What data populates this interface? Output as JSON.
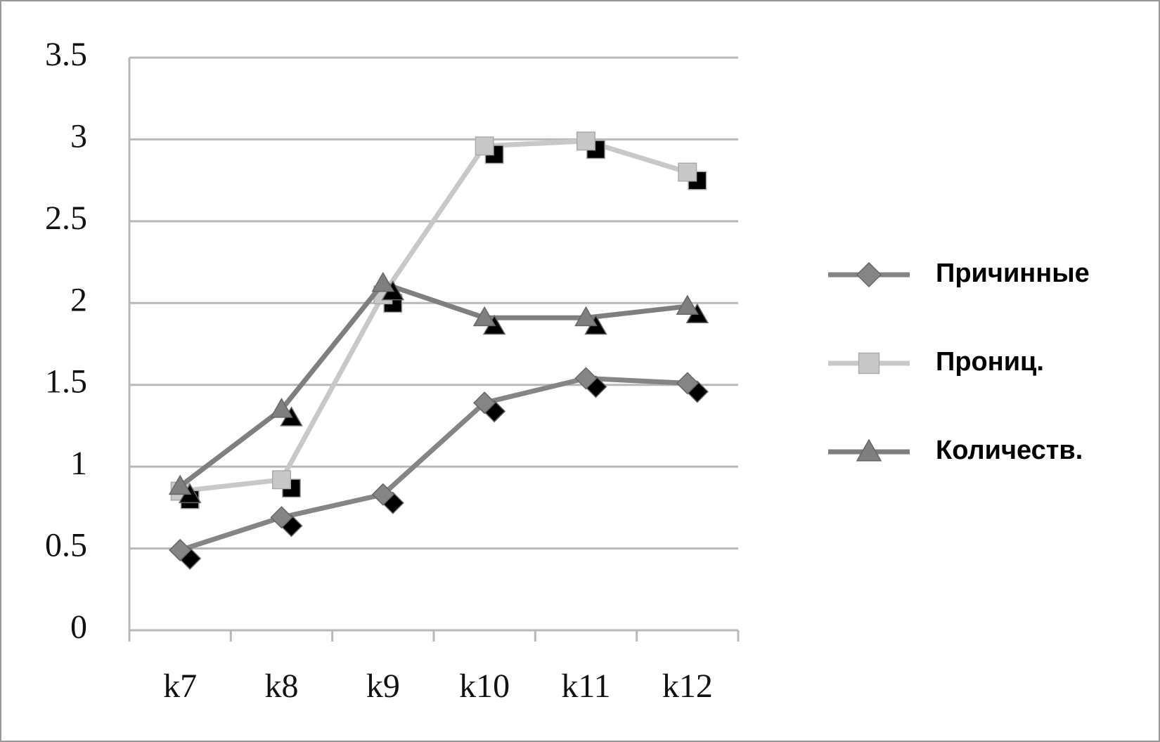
{
  "chart_data": {
    "type": "line",
    "categories": [
      "k7",
      "k8",
      "k9",
      "k10",
      "k11",
      "k12"
    ],
    "series": [
      {
        "name": "Причинные",
        "color": "#858585",
        "marker": "diamond",
        "values": [
          0.49,
          0.69,
          0.83,
          1.39,
          1.54,
          1.51
        ]
      },
      {
        "name": "Прониц.",
        "color": "#c8c8c8",
        "marker": "square",
        "values": [
          0.85,
          0.92,
          2.05,
          2.96,
          2.99,
          2.8
        ]
      },
      {
        "name": "Количеств.",
        "color": "#7f7f7f",
        "marker": "triangle",
        "values": [
          0.88,
          1.35,
          2.12,
          1.91,
          1.91,
          1.98
        ]
      }
    ],
    "ylim": [
      0,
      3.5
    ],
    "yticks": [
      0,
      0.5,
      1,
      1.5,
      2,
      2.5,
      3,
      3.5
    ],
    "grid": true,
    "legend": "right"
  }
}
